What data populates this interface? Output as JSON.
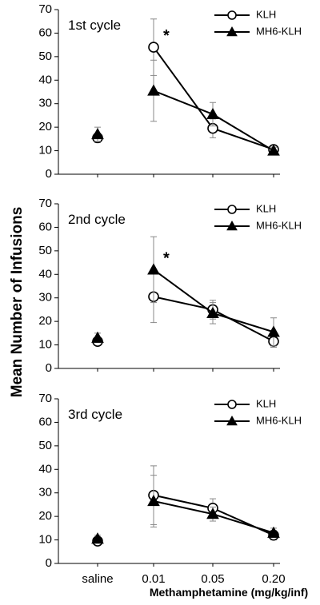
{
  "figure": {
    "ylabel": "Mean Number of Infusions",
    "xlabel": "Methamphetamine (mg/kg/inf)"
  },
  "chart_data": [
    {
      "type": "line",
      "title": "1st cycle",
      "categories": [
        "saline",
        "0.01",
        "0.05",
        "0.20"
      ],
      "ylim": [
        0,
        70
      ],
      "yticks": [
        "0",
        "10",
        "20",
        "30",
        "40",
        "50",
        "60",
        "70"
      ],
      "legend": "top-right",
      "series": [
        {
          "name": "KLH",
          "marker": "circle-open",
          "values": [
            15.5,
            54,
            19.5,
            10.5
          ],
          "error": [
            2,
            12,
            4,
            1.5
          ],
          "connect_from": 1
        },
        {
          "name": "MH6-KLH",
          "marker": "triangle",
          "values": [
            17,
            35.5,
            25.5,
            10
          ],
          "error": [
            3,
            13,
            5,
            1.5
          ],
          "connect_from": 1
        }
      ],
      "annotations": [
        {
          "text": "*",
          "series": 0,
          "category": 1
        }
      ]
    },
    {
      "type": "line",
      "title": "2nd cycle",
      "categories": [
        "saline",
        "0.01",
        "0.05",
        "0.20"
      ],
      "ylim": [
        0,
        70
      ],
      "yticks": [
        "0",
        "10",
        "20",
        "30",
        "40",
        "50",
        "60",
        "70"
      ],
      "legend": "top-right",
      "series": [
        {
          "name": "KLH",
          "marker": "circle-open",
          "values": [
            11.5,
            30.5,
            25,
            11.5
          ],
          "error": [
            1.5,
            11,
            4,
            2.5
          ],
          "connect_from": 1
        },
        {
          "name": "MH6-KLH",
          "marker": "triangle",
          "values": [
            13,
            42,
            23.5,
            15.5
          ],
          "error": [
            2,
            14,
            4.5,
            6
          ],
          "connect_from": 1
        }
      ],
      "annotations": [
        {
          "text": "*",
          "series": 1,
          "category": 1
        }
      ]
    },
    {
      "type": "line",
      "title": "3rd cycle",
      "categories": [
        "saline",
        "0.01",
        "0.05",
        "0.20"
      ],
      "ylim": [
        0,
        70
      ],
      "yticks": [
        "0",
        "10",
        "20",
        "30",
        "40",
        "50",
        "60",
        "70"
      ],
      "legend": "top-right",
      "series": [
        {
          "name": "KLH",
          "marker": "circle-open",
          "values": [
            9.5,
            29,
            23.5,
            12
          ],
          "error": [
            1.5,
            12.5,
            4,
            2
          ],
          "connect_from": 1
        },
        {
          "name": "MH6-KLH",
          "marker": "triangle",
          "values": [
            10.5,
            26.5,
            21,
            13
          ],
          "error": [
            1.5,
            11,
            3,
            2
          ],
          "connect_from": 1
        }
      ],
      "annotations": []
    }
  ]
}
